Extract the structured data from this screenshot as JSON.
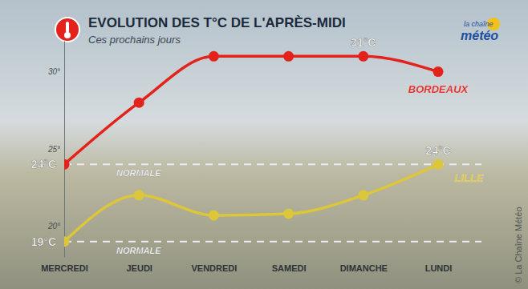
{
  "chart_data": {
    "type": "line",
    "title": "EVOLUTION DES T°C DE L'APRÈS-MIDI",
    "subtitle": "Ces prochains jours",
    "logo": [
      "la chaîne",
      "météo"
    ],
    "credit": "© La Chaîne Météo",
    "categories": [
      "MERCREDI",
      "JEUDI",
      "VENDREDI",
      "SAMEDI",
      "DIMANCHE",
      "LUNDI"
    ],
    "series": [
      {
        "name": "BORDEAUX",
        "color": "#e3221b",
        "marker": "circle",
        "values": [
          24,
          28,
          31,
          31,
          31,
          30
        ],
        "value_labels": [
          "24°C",
          null,
          null,
          null,
          "31°C",
          null
        ]
      },
      {
        "name": "LILLE",
        "color": "#dcc63a",
        "marker": "circle",
        "values": [
          19,
          22,
          20.7,
          20.8,
          22,
          24
        ],
        "value_labels": [
          "19°C",
          null,
          null,
          null,
          null,
          "24°C"
        ]
      }
    ],
    "reference_lines": [
      {
        "value": 24,
        "label": "NORMALE",
        "line_style": "dashed"
      },
      {
        "value": 19,
        "label": "NORMALE",
        "line_style": "dashed"
      }
    ],
    "ylim": [
      18,
      32
    ],
    "yticks": [
      {
        "value": 20,
        "label": "20°"
      },
      {
        "value": 25,
        "label": "25°"
      },
      {
        "value": 30,
        "label": "30°"
      }
    ],
    "grid": false
  }
}
